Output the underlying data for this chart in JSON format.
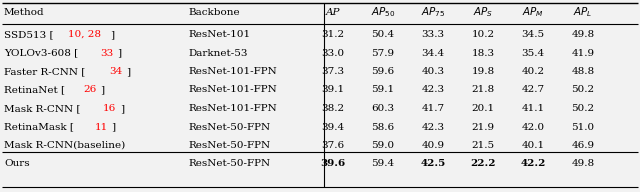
{
  "col_headers_plain": [
    "Method",
    "Backbone",
    "AP",
    "AP_50",
    "AP_75",
    "AP_S",
    "AP_M",
    "AP_L"
  ],
  "col_headers_display": [
    "Method",
    "Backbone",
    "AP",
    "AP_{50}",
    "AP_{75}",
    "AP_S",
    "AP_M",
    "AP_L"
  ],
  "rows": [
    {
      "method": "SSD513 [10, 28]",
      "method_black": [
        "SSD513 [",
        "]"
      ],
      "method_red": "10, 28",
      "backbone": "ResNet-101",
      "values": [
        "31.2",
        "50.4",
        "33.3",
        "10.2",
        "34.5",
        "49.8"
      ],
      "bold": [
        false,
        false,
        false,
        false,
        false,
        false
      ]
    },
    {
      "method": "YOLOv3-608 [33]",
      "method_black": [
        "YOLOv3-608 [",
        "]"
      ],
      "method_red": "33",
      "backbone": "Darknet-53",
      "values": [
        "33.0",
        "57.9",
        "34.4",
        "18.3",
        "35.4",
        "41.9"
      ],
      "bold": [
        false,
        false,
        false,
        false,
        false,
        false
      ]
    },
    {
      "method": "Faster R-CNN [34]",
      "method_black": [
        "Faster R-CNN [",
        "]"
      ],
      "method_red": "34",
      "backbone": "ResNet-101-FPN",
      "values": [
        "37.3",
        "59.6",
        "40.3",
        "19.8",
        "40.2",
        "48.8"
      ],
      "bold": [
        false,
        false,
        false,
        false,
        false,
        false
      ]
    },
    {
      "method": "RetinaNet [26]",
      "method_black": [
        "RetinaNet [",
        "]"
      ],
      "method_red": "26",
      "backbone": "ResNet-101-FPN",
      "values": [
        "39.1",
        "59.1",
        "42.3",
        "21.8",
        "42.7",
        "50.2"
      ],
      "bold": [
        false,
        false,
        false,
        false,
        false,
        false
      ]
    },
    {
      "method": "Mask R-CNN [16]",
      "method_black": [
        "Mask R-CNN [",
        "]"
      ],
      "method_red": "16",
      "backbone": "ResNet-101-FPN",
      "values": [
        "38.2",
        "60.3",
        "41.7",
        "20.1",
        "41.1",
        "50.2"
      ],
      "bold": [
        false,
        false,
        false,
        false,
        false,
        false
      ]
    },
    {
      "method": "RetinaMask [11]",
      "method_black": [
        "RetinaMask [",
        "]"
      ],
      "method_red": "11",
      "backbone": "ResNet-50-FPN",
      "values": [
        "39.4",
        "58.6",
        "42.3",
        "21.9",
        "42.0",
        "51.0"
      ],
      "bold": [
        false,
        false,
        false,
        false,
        false,
        false
      ]
    },
    {
      "method": "Mask R-CNN(baseline)",
      "method_black": [
        "Mask R-CNN(baseline)",
        ""
      ],
      "method_red": "",
      "backbone": "ResNet-50-FPN",
      "values": [
        "37.6",
        "59.0",
        "40.9",
        "21.5",
        "40.1",
        "46.9"
      ],
      "bold": [
        false,
        false,
        false,
        false,
        false,
        false
      ],
      "separator_above": true
    },
    {
      "method": "Ours",
      "method_black": [
        "Ours",
        ""
      ],
      "method_red": "",
      "backbone": "ResNet-50-FPN",
      "values": [
        "39.6",
        "59.4",
        "42.5",
        "22.2",
        "42.2",
        "49.8"
      ],
      "bold": [
        true,
        false,
        true,
        true,
        true,
        false
      ]
    }
  ],
  "fontsize": 7.5,
  "bg_color": "#f2f2f2"
}
